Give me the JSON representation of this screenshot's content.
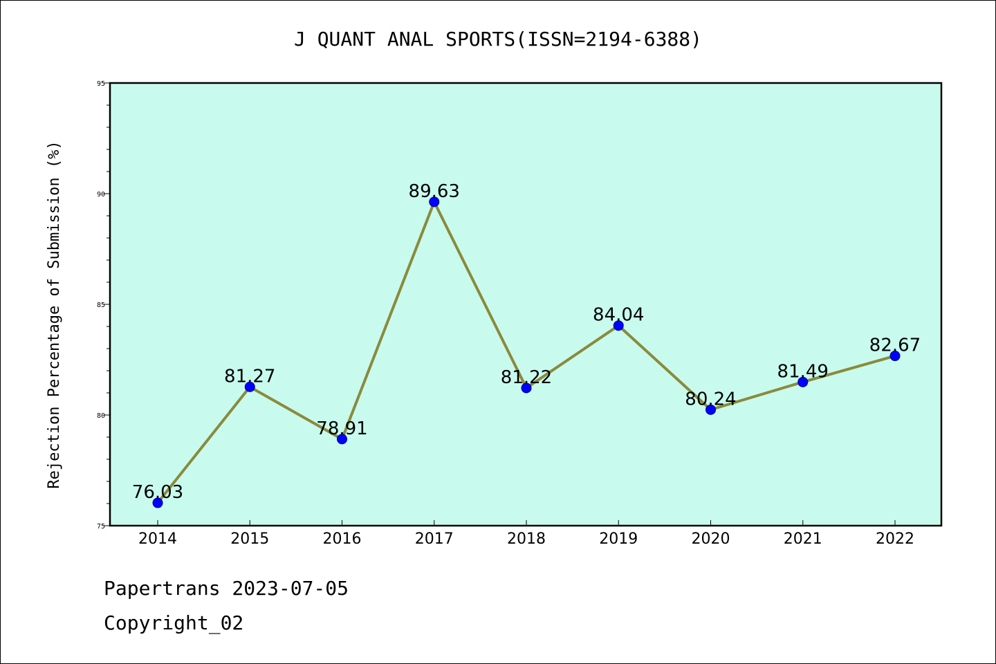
{
  "chart_data": {
    "type": "line",
    "title": "J QUANT ANAL SPORTS(ISSN=2194-6388)",
    "xlabel": "",
    "ylabel": "Rejection Percentage of Submission (%)",
    "categories": [
      "2014",
      "2015",
      "2016",
      "2017",
      "2018",
      "2019",
      "2020",
      "2021",
      "2022"
    ],
    "series": [
      {
        "values": [
          76.03,
          81.27,
          78.91,
          89.63,
          81.22,
          84.04,
          80.24,
          81.49,
          82.67
        ],
        "labels": [
          "76.03",
          "81.27",
          "78.91",
          "89.63",
          "81.22",
          "84.04",
          "80.24",
          "81.49",
          "82.67"
        ],
        "line_color": "#8b8a3c",
        "marker_color": "#0000ff"
      }
    ],
    "ylim": [
      75,
      95
    ],
    "yticks": [
      "75",
      "80",
      "85",
      "90",
      "95"
    ],
    "plot_background": "#c8fbee",
    "grid": false,
    "legend": "none"
  },
  "footer": {
    "line1": "Papertrans 2023-07-05",
    "line2": "Copyright_02"
  }
}
